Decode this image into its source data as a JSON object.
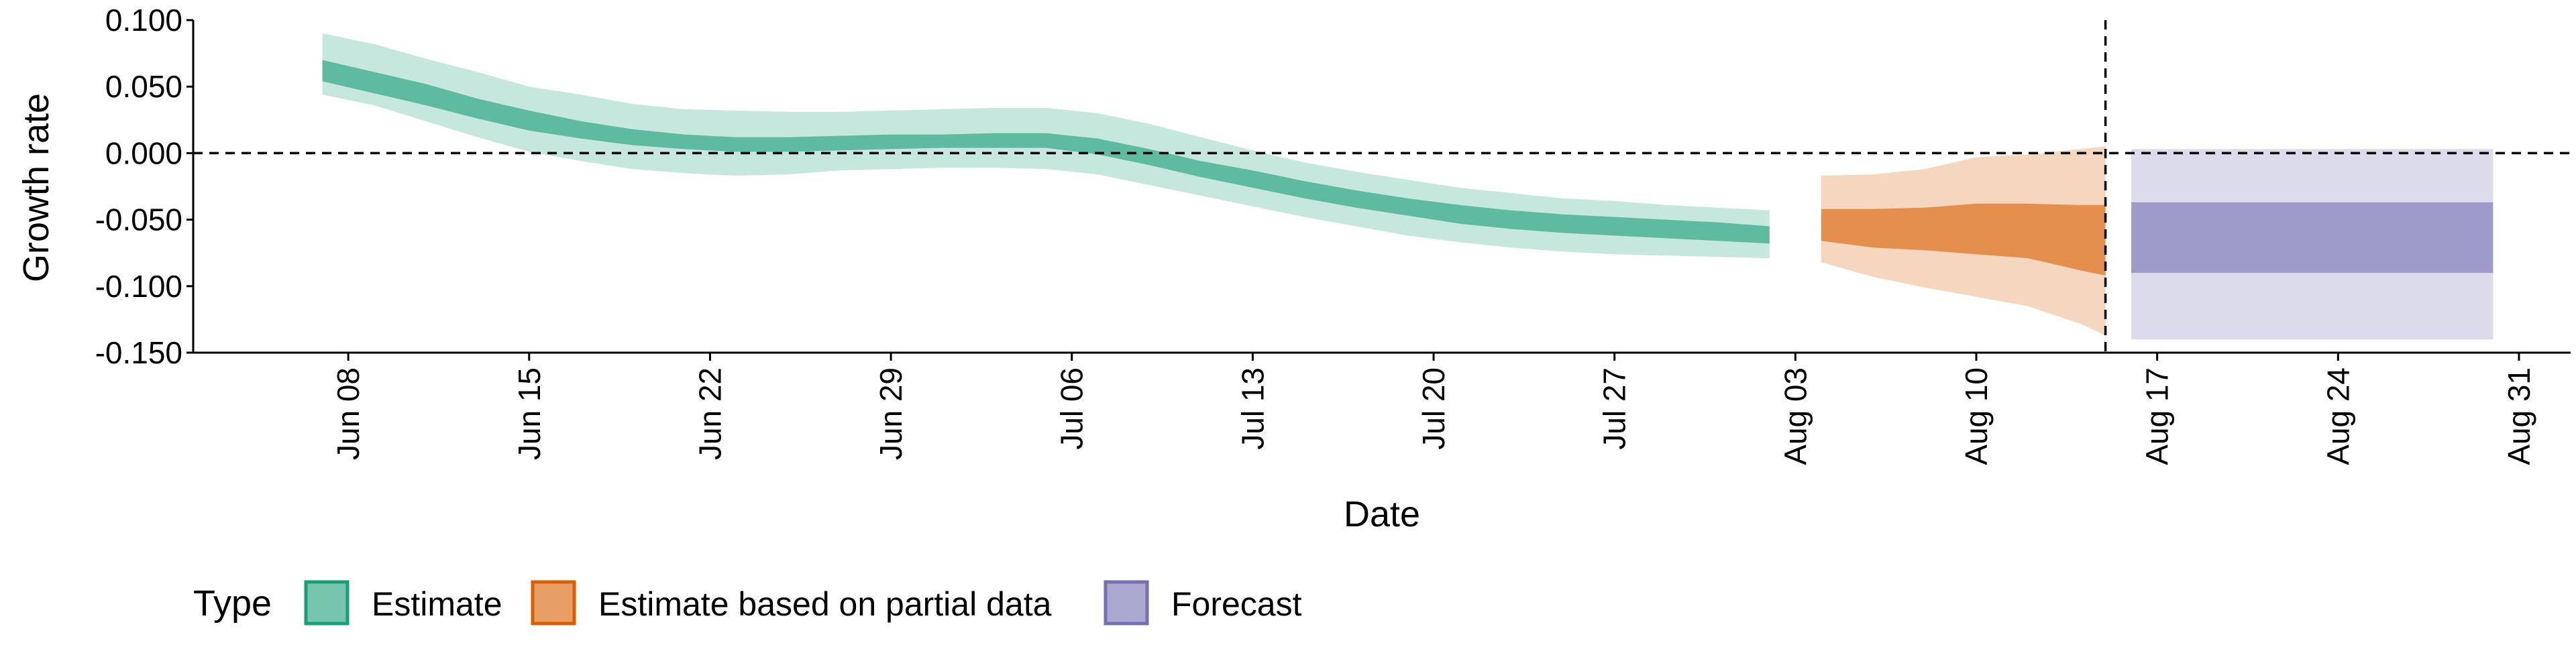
{
  "chart_data": {
    "type": "area",
    "xlabel": "Date",
    "ylabel": "Growth rate",
    "ylim": [
      -0.15,
      0.1
    ],
    "y_ticks": [
      0.1,
      0.05,
      0.0,
      -0.05,
      -0.1,
      -0.15
    ],
    "y_tick_labels": [
      "0.100",
      "0.050",
      "0.000",
      "-0.050",
      "-0.100",
      "-0.150"
    ],
    "x_ticks": [
      "2020-06-08",
      "2020-06-15",
      "2020-06-22",
      "2020-06-29",
      "2020-07-06",
      "2020-07-13",
      "2020-07-20",
      "2020-07-27",
      "2020-08-03",
      "2020-08-10",
      "2020-08-17",
      "2020-08-24",
      "2020-08-31"
    ],
    "x_tick_labels": [
      "Jun 08",
      "Jun 15",
      "Jun 22",
      "Jun 29",
      "Jul 06",
      "Jul 13",
      "Jul 20",
      "Jul 27",
      "Aug 03",
      "Aug 10",
      "Aug 17",
      "Aug 24",
      "Aug 31"
    ],
    "xlim": [
      "2020-06-02",
      "2020-09-02"
    ],
    "reference_lines": {
      "horizontal_y": 0.0,
      "vertical_x": "2020-08-15"
    },
    "legend": {
      "title": "Type",
      "position": "bottom-left",
      "entries": [
        "Estimate",
        "Estimate based on partial data",
        "Forecast"
      ]
    },
    "colors": {
      "Estimate": "#1b9e77",
      "Estimate based on partial data": "#d95f02",
      "Forecast": "#7570b3"
    },
    "series": [
      {
        "name": "Estimate",
        "dates": [
          "2020-06-07",
          "2020-06-09",
          "2020-06-11",
          "2020-06-13",
          "2020-06-15",
          "2020-06-17",
          "2020-06-19",
          "2020-06-21",
          "2020-06-23",
          "2020-06-25",
          "2020-06-27",
          "2020-06-29",
          "2020-07-01",
          "2020-07-03",
          "2020-07-05",
          "2020-07-07",
          "2020-07-09",
          "2020-07-11",
          "2020-07-13",
          "2020-07-15",
          "2020-07-17",
          "2020-07-19",
          "2020-07-21",
          "2020-07-23",
          "2020-07-25",
          "2020-07-27",
          "2020-07-29",
          "2020-07-31",
          "2020-08-02"
        ],
        "upper_90": [
          0.09,
          0.082,
          0.071,
          0.061,
          0.05,
          0.044,
          0.037,
          0.033,
          0.032,
          0.031,
          0.031,
          0.032,
          0.033,
          0.034,
          0.034,
          0.03,
          0.022,
          0.012,
          0.002,
          -0.007,
          -0.014,
          -0.02,
          -0.026,
          -0.03,
          -0.034,
          -0.036,
          -0.039,
          -0.041,
          -0.043
        ],
        "upper_50": [
          0.07,
          0.061,
          0.052,
          0.041,
          0.032,
          0.024,
          0.018,
          0.014,
          0.012,
          0.012,
          0.013,
          0.014,
          0.014,
          0.015,
          0.015,
          0.011,
          0.003,
          -0.006,
          -0.013,
          -0.021,
          -0.028,
          -0.034,
          -0.039,
          -0.043,
          -0.046,
          -0.048,
          -0.05,
          -0.052,
          -0.055
        ],
        "lower_50": [
          0.054,
          0.045,
          0.036,
          0.026,
          0.017,
          0.011,
          0.006,
          0.003,
          0.001,
          0.001,
          0.002,
          0.003,
          0.004,
          0.004,
          0.004,
          -0.001,
          -0.009,
          -0.018,
          -0.026,
          -0.034,
          -0.041,
          -0.047,
          -0.053,
          -0.057,
          -0.06,
          -0.062,
          -0.064,
          -0.066,
          -0.068
        ],
        "lower_90": [
          0.044,
          0.036,
          0.024,
          0.012,
          0.001,
          -0.006,
          -0.012,
          -0.015,
          -0.017,
          -0.016,
          -0.013,
          -0.012,
          -0.011,
          -0.011,
          -0.012,
          -0.016,
          -0.024,
          -0.032,
          -0.04,
          -0.048,
          -0.055,
          -0.062,
          -0.067,
          -0.071,
          -0.074,
          -0.076,
          -0.077,
          -0.078,
          -0.079
        ]
      },
      {
        "name": "Estimate based on partial data",
        "dates": [
          "2020-08-04",
          "2020-08-06",
          "2020-08-08",
          "2020-08-10",
          "2020-08-12",
          "2020-08-14",
          "2020-08-15"
        ],
        "upper_90": [
          -0.017,
          -0.016,
          -0.012,
          -0.003,
          -0.001,
          0.003,
          0.005
        ],
        "upper_50": [
          -0.042,
          -0.042,
          -0.041,
          -0.038,
          -0.038,
          -0.039,
          -0.039
        ],
        "lower_50": [
          -0.066,
          -0.071,
          -0.073,
          -0.076,
          -0.079,
          -0.088,
          -0.092
        ],
        "lower_90": [
          -0.082,
          -0.093,
          -0.101,
          -0.108,
          -0.115,
          -0.128,
          -0.137
        ]
      },
      {
        "name": "Forecast",
        "dates": [
          "2020-08-16",
          "2020-08-30"
        ],
        "upper_90": [
          0.003,
          0.003
        ],
        "upper_50": [
          -0.037,
          -0.037
        ],
        "lower_50": [
          -0.09,
          -0.09
        ],
        "lower_90": [
          -0.14,
          -0.14
        ]
      }
    ]
  }
}
